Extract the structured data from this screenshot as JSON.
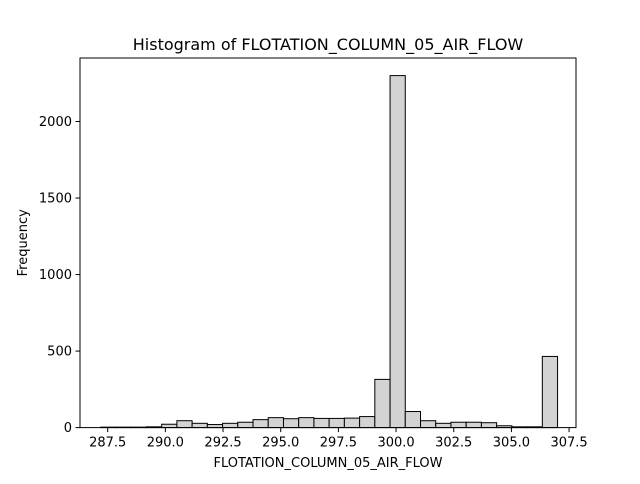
{
  "chart_data": {
    "type": "bar",
    "title": "Histogram of FLOTATION_COLUMN_05_AIR_FLOW",
    "xlabel": "FLOTATION_COLUMN_05_AIR_FLOW",
    "ylabel": "Frequency",
    "xlim": [
      286.3,
      307.8
    ],
    "ylim": [
      0,
      2415
    ],
    "xticks": [
      287.5,
      290.0,
      292.5,
      295.0,
      297.5,
      300.0,
      302.5,
      305.0,
      307.5
    ],
    "xtick_labels": [
      "287.5",
      "290.0",
      "292.5",
      "295.0",
      "297.5",
      "300.0",
      "302.5",
      "305.0",
      "307.5"
    ],
    "yticks": [
      0,
      500,
      1000,
      1500,
      2000
    ],
    "ytick_labels": [
      "0",
      "500",
      "1000",
      "1500",
      "2000"
    ],
    "bin_width": 0.66,
    "bins": [
      {
        "x0": 287.2,
        "x1": 287.86,
        "count": 3
      },
      {
        "x0": 287.86,
        "x1": 288.52,
        "count": 3
      },
      {
        "x0": 288.52,
        "x1": 289.18,
        "count": 3
      },
      {
        "x0": 289.18,
        "x1": 289.84,
        "count": 5
      },
      {
        "x0": 289.84,
        "x1": 290.5,
        "count": 22
      },
      {
        "x0": 290.5,
        "x1": 291.16,
        "count": 45
      },
      {
        "x0": 291.16,
        "x1": 291.82,
        "count": 28
      },
      {
        "x0": 291.82,
        "x1": 292.48,
        "count": 20
      },
      {
        "x0": 292.48,
        "x1": 293.14,
        "count": 28
      },
      {
        "x0": 293.14,
        "x1": 293.8,
        "count": 35
      },
      {
        "x0": 293.8,
        "x1": 294.46,
        "count": 52
      },
      {
        "x0": 294.46,
        "x1": 295.12,
        "count": 65
      },
      {
        "x0": 295.12,
        "x1": 295.78,
        "count": 58
      },
      {
        "x0": 295.78,
        "x1": 296.44,
        "count": 65
      },
      {
        "x0": 296.44,
        "x1": 297.1,
        "count": 60
      },
      {
        "x0": 297.1,
        "x1": 297.76,
        "count": 60
      },
      {
        "x0": 297.76,
        "x1": 298.42,
        "count": 62
      },
      {
        "x0": 298.42,
        "x1": 299.08,
        "count": 72
      },
      {
        "x0": 299.08,
        "x1": 299.74,
        "count": 315
      },
      {
        "x0": 299.74,
        "x1": 300.4,
        "count": 2300
      },
      {
        "x0": 300.4,
        "x1": 301.06,
        "count": 105
      },
      {
        "x0": 301.06,
        "x1": 301.72,
        "count": 45
      },
      {
        "x0": 301.72,
        "x1": 302.38,
        "count": 28
      },
      {
        "x0": 302.38,
        "x1": 303.04,
        "count": 35
      },
      {
        "x0": 303.04,
        "x1": 303.7,
        "count": 35
      },
      {
        "x0": 303.7,
        "x1": 304.36,
        "count": 32
      },
      {
        "x0": 304.36,
        "x1": 305.02,
        "count": 12
      },
      {
        "x0": 305.02,
        "x1": 305.68,
        "count": 5
      },
      {
        "x0": 305.68,
        "x1": 306.34,
        "count": 5
      },
      {
        "x0": 306.34,
        "x1": 307.0,
        "count": 465
      }
    ],
    "grid": false,
    "bar_fill": "#d3d3d3",
    "bar_edge": "#000000"
  }
}
